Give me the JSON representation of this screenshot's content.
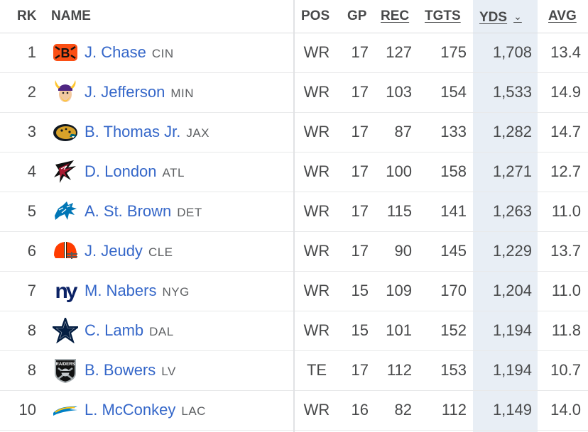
{
  "headers": {
    "rk": "RK",
    "name": "NAME",
    "pos": "POS",
    "gp": "GP",
    "rec": "REC",
    "tgts": "TGTS",
    "yds": "YDS",
    "avg": "AVG",
    "sort_icon": "chevron-down-icon"
  },
  "colors": {
    "link": "#3567c9",
    "sorted_column": "#e8eef5",
    "text": "#48494a"
  },
  "rows": [
    {
      "rk": "1",
      "name": "J. Chase",
      "team": "CIN",
      "logo": "bengals-logo-icon",
      "pos": "WR",
      "gp": "17",
      "rec": "127",
      "tgts": "175",
      "yds": "1,708",
      "avg": "13.4"
    },
    {
      "rk": "2",
      "name": "J. Jefferson",
      "team": "MIN",
      "logo": "vikings-logo-icon",
      "pos": "WR",
      "gp": "17",
      "rec": "103",
      "tgts": "154",
      "yds": "1,533",
      "avg": "14.9"
    },
    {
      "rk": "3",
      "name": "B. Thomas Jr.",
      "team": "JAX",
      "logo": "jaguars-logo-icon",
      "pos": "WR",
      "gp": "17",
      "rec": "87",
      "tgts": "133",
      "yds": "1,282",
      "avg": "14.7"
    },
    {
      "rk": "4",
      "name": "D. London",
      "team": "ATL",
      "logo": "falcons-logo-icon",
      "pos": "WR",
      "gp": "17",
      "rec": "100",
      "tgts": "158",
      "yds": "1,271",
      "avg": "12.7"
    },
    {
      "rk": "5",
      "name": "A. St. Brown",
      "team": "DET",
      "logo": "lions-logo-icon",
      "pos": "WR",
      "gp": "17",
      "rec": "115",
      "tgts": "141",
      "yds": "1,263",
      "avg": "11.0"
    },
    {
      "rk": "6",
      "name": "J. Jeudy",
      "team": "CLE",
      "logo": "browns-logo-icon",
      "pos": "WR",
      "gp": "17",
      "rec": "90",
      "tgts": "145",
      "yds": "1,229",
      "avg": "13.7"
    },
    {
      "rk": "7",
      "name": "M. Nabers",
      "team": "NYG",
      "logo": "giants-logo-icon",
      "pos": "WR",
      "gp": "15",
      "rec": "109",
      "tgts": "170",
      "yds": "1,204",
      "avg": "11.0"
    },
    {
      "rk": "8",
      "name": "C. Lamb",
      "team": "DAL",
      "logo": "cowboys-logo-icon",
      "pos": "WR",
      "gp": "15",
      "rec": "101",
      "tgts": "152",
      "yds": "1,194",
      "avg": "11.8"
    },
    {
      "rk": "8",
      "name": "B. Bowers",
      "team": "LV",
      "logo": "raiders-logo-icon",
      "pos": "TE",
      "gp": "17",
      "rec": "112",
      "tgts": "153",
      "yds": "1,194",
      "avg": "10.7"
    },
    {
      "rk": "10",
      "name": "L. McConkey",
      "team": "LAC",
      "logo": "chargers-logo-icon",
      "pos": "WR",
      "gp": "16",
      "rec": "82",
      "tgts": "112",
      "yds": "1,149",
      "avg": "14.0"
    }
  ]
}
